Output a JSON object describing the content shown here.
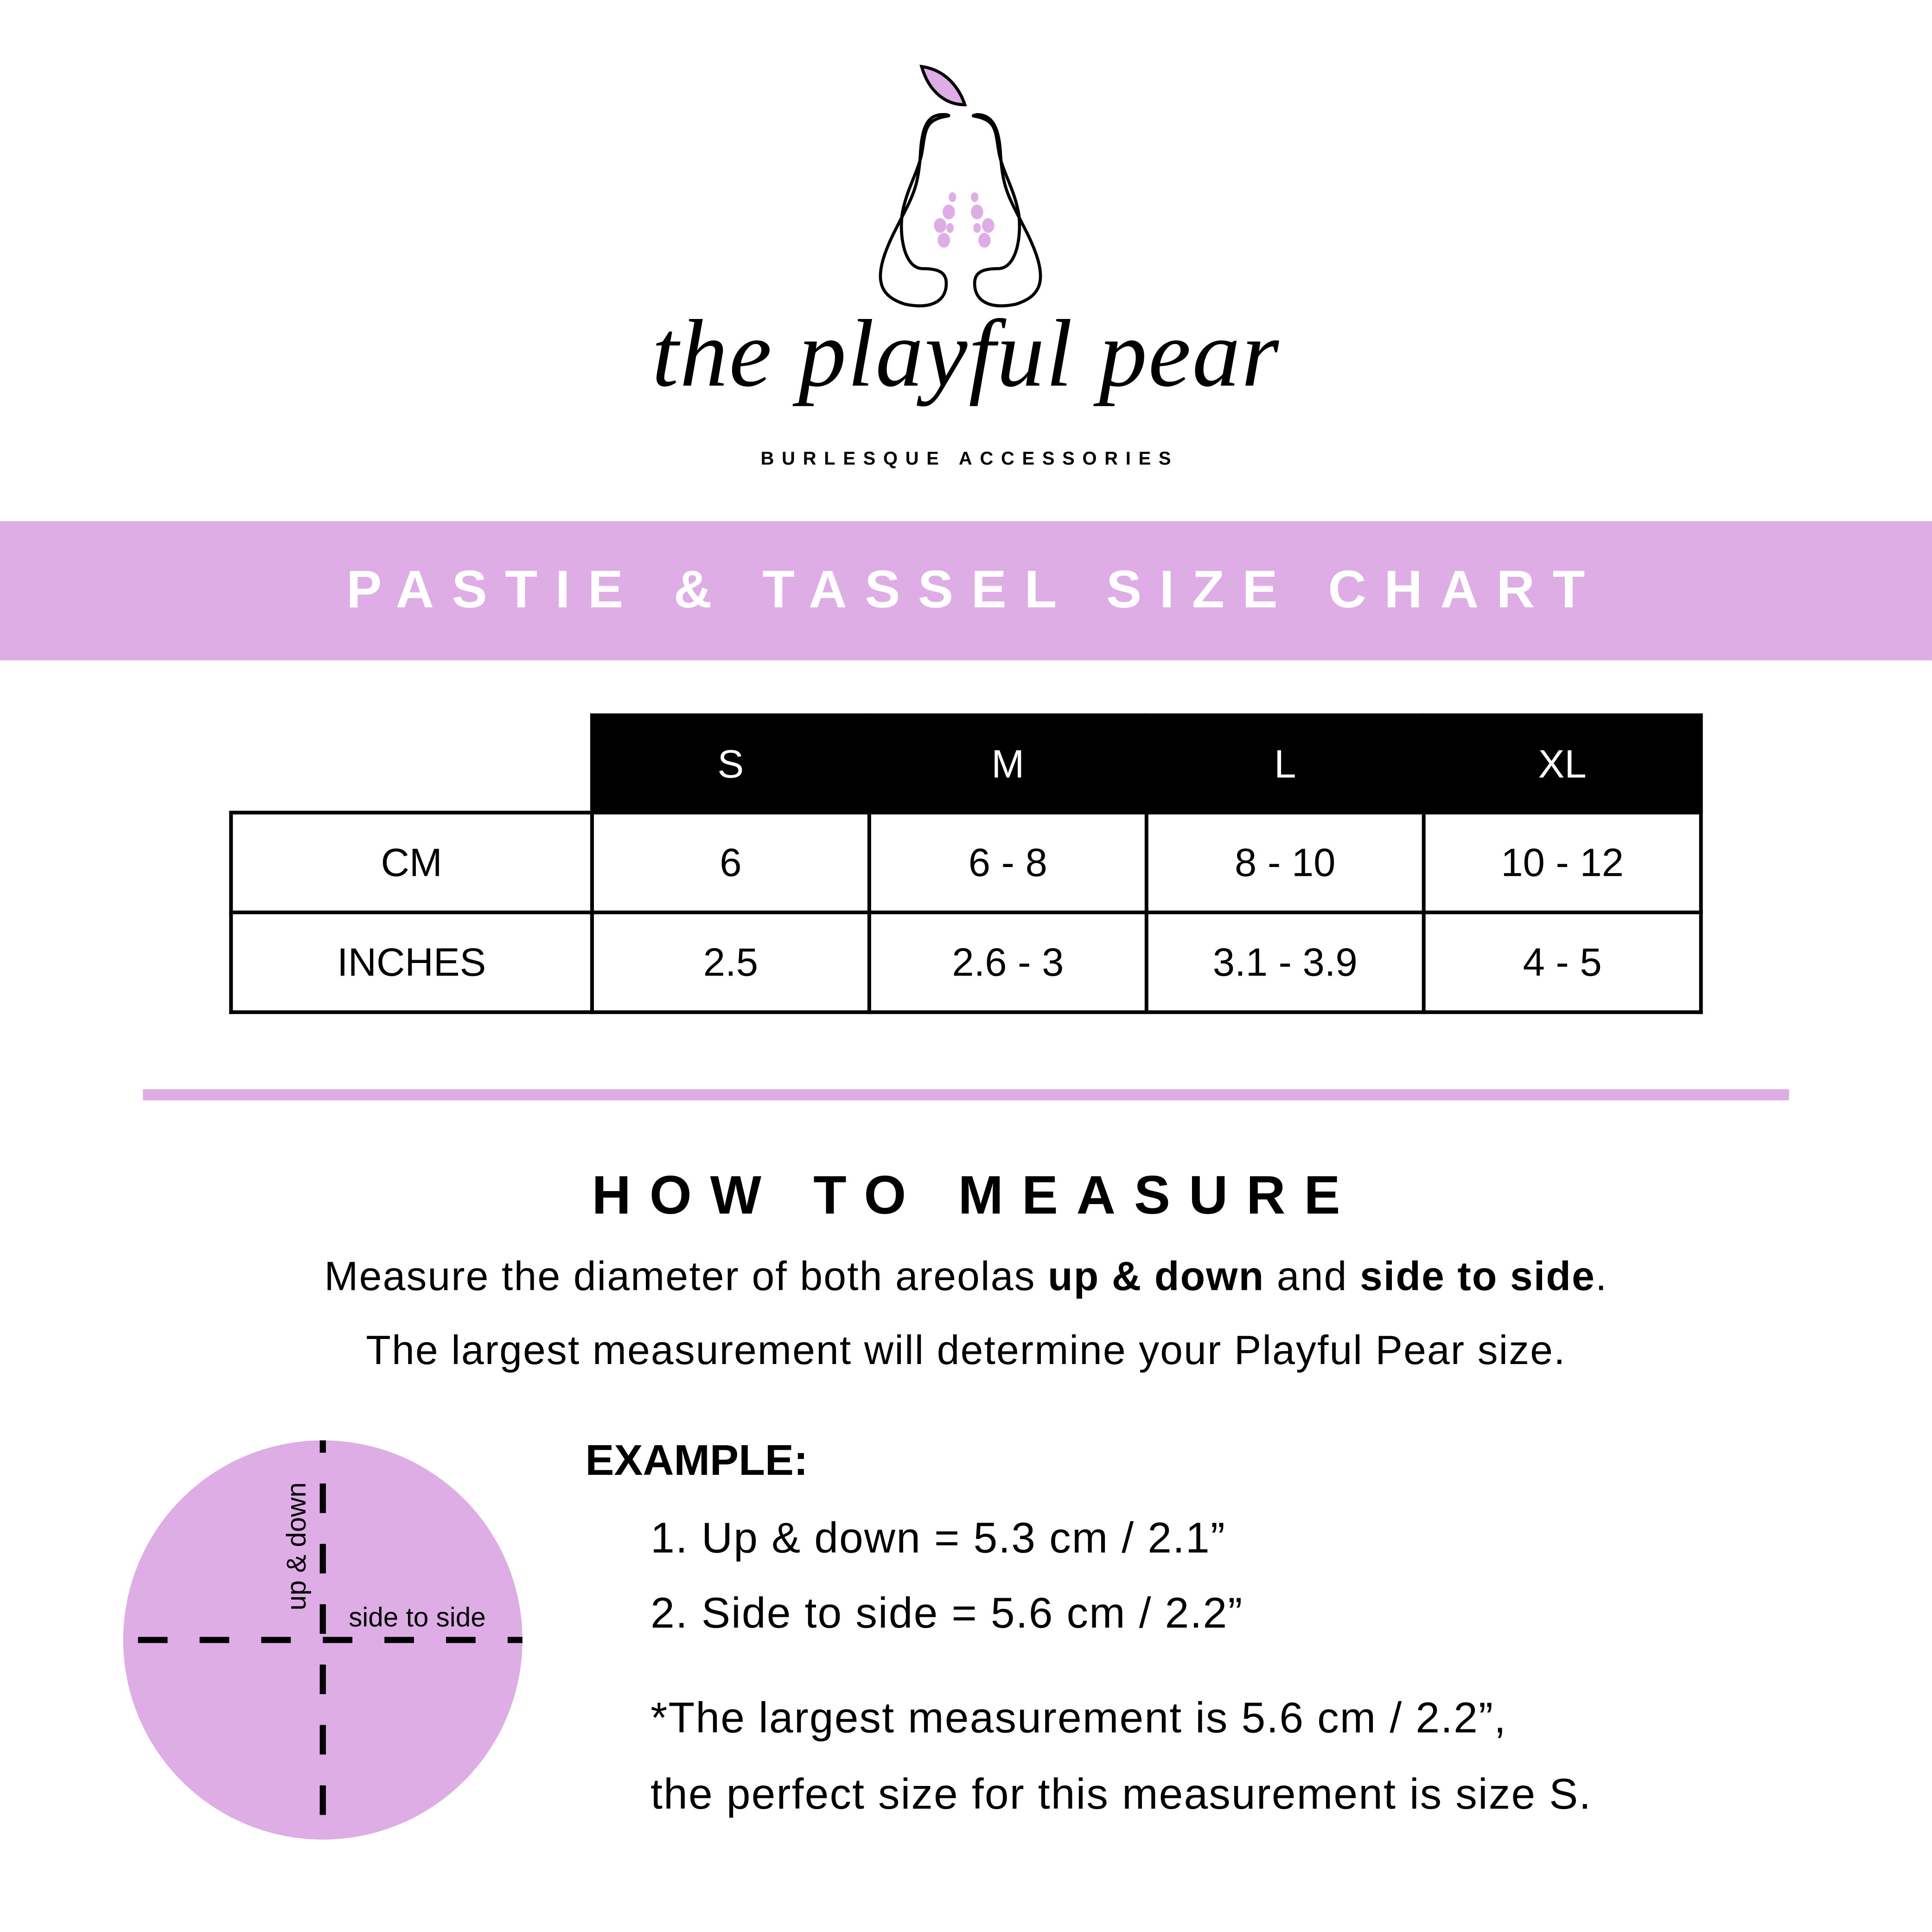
{
  "brand": {
    "name": "the playful pear",
    "tagline": "BURLESQUE ACCESSORIES",
    "accent_color": "#deade5"
  },
  "banner": {
    "title": "PASTIE & TASSEL SIZE CHART"
  },
  "size_table": {
    "headers": [
      "S",
      "M",
      "L",
      "XL"
    ],
    "rows": [
      {
        "label": "CM",
        "values": [
          "6",
          "6 - 8",
          "8 - 10",
          "10 - 12"
        ]
      },
      {
        "label": "INCHES",
        "values": [
          "2.5",
          "2.6 - 3",
          "3.1 - 3.9",
          "4 - 5"
        ]
      }
    ]
  },
  "how_to": {
    "title": "HOW TO MEASURE",
    "line1": {
      "pre": "Measure the diameter of both areolas ",
      "b1": "up & down",
      "mid": " and ",
      "b2": "side to side",
      "post": "."
    },
    "line2": "The largest measurement will determine your Playful Pear size.",
    "diagram": {
      "vertical_label": "up & down",
      "horizontal_label": "side to side"
    },
    "example_label": "EXAMPLE:",
    "examples": [
      "1. Up & down = 5.3 cm / 2.1”",
      "2. Side to side = 5.6 cm / 2.2”"
    ],
    "note_line1": "*The largest measurement is 5.6 cm / 2.2”,",
    "note_line2": "the perfect size for this measurement is size S."
  }
}
